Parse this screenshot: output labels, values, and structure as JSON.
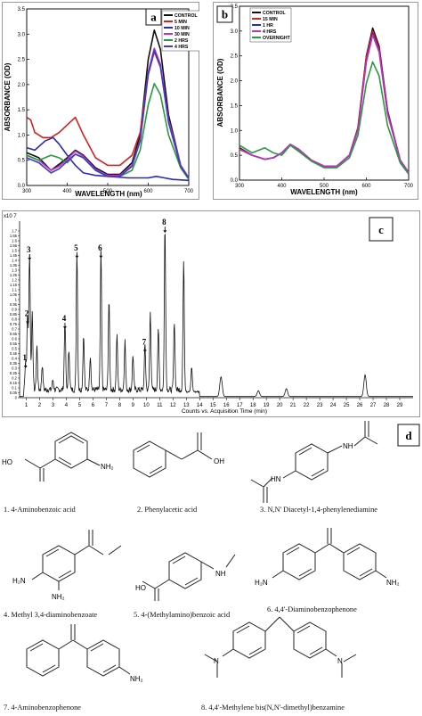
{
  "panel_a": {
    "tag": "a",
    "chart_data": {
      "type": "line",
      "xlabel": "WAVELENGTH (nm)",
      "ylabel": "ABSORBANCE (OD)",
      "xlim": [
        300,
        700
      ],
      "ylim": [
        0.0,
        3.5
      ],
      "xticks": [
        "300",
        "400",
        "500",
        "600",
        "700"
      ],
      "yticks": [
        "0.0",
        "0.5",
        "1.0",
        "1.5",
        "2.0",
        "2.5",
        "3.0",
        "3.5"
      ],
      "legend_position": "top-right",
      "series": [
        {
          "name": "CONTROL",
          "color": "#111111",
          "x": [
            300,
            330,
            360,
            380,
            400,
            420,
            440,
            470,
            500,
            530,
            560,
            580,
            600,
            615,
            630,
            650,
            680,
            700
          ],
          "y": [
            0.65,
            0.55,
            0.3,
            0.42,
            0.55,
            0.7,
            0.6,
            0.35,
            0.22,
            0.22,
            0.45,
            1.0,
            2.5,
            3.08,
            2.7,
            1.4,
            0.4,
            0.15
          ]
        },
        {
          "name": "5 MIN",
          "color": "#d62020",
          "x": [
            300,
            310,
            320,
            340,
            360,
            380,
            400,
            420,
            440,
            470,
            500,
            530,
            560,
            580,
            600,
            615,
            630,
            650,
            680,
            700
          ],
          "y": [
            1.35,
            1.3,
            1.05,
            0.95,
            0.95,
            1.05,
            1.2,
            1.35,
            1.0,
            0.55,
            0.4,
            0.4,
            0.6,
            1.05,
            2.2,
            2.65,
            2.35,
            1.3,
            0.4,
            0.15
          ]
        },
        {
          "name": "10 MIN",
          "color": "#2a2ab8",
          "x": [
            300,
            320,
            345,
            365,
            380,
            400,
            420,
            440,
            470,
            500,
            550,
            600,
            620,
            640,
            660,
            700
          ],
          "y": [
            0.75,
            0.7,
            0.88,
            0.95,
            0.82,
            0.6,
            0.4,
            0.25,
            0.2,
            0.18,
            0.15,
            0.15,
            0.18,
            0.15,
            0.12,
            0.1
          ]
        },
        {
          "name": "30 MIN",
          "color": "#c033c0",
          "x": [
            300,
            330,
            360,
            380,
            400,
            420,
            440,
            470,
            500,
            530,
            560,
            580,
            600,
            615,
            630,
            650,
            680,
            700
          ],
          "y": [
            0.6,
            0.5,
            0.3,
            0.38,
            0.52,
            0.68,
            0.58,
            0.32,
            0.2,
            0.2,
            0.4,
            0.9,
            2.25,
            2.72,
            2.4,
            1.3,
            0.4,
            0.15
          ]
        },
        {
          "name": "2 HRS",
          "color": "#2a9a3a",
          "x": [
            300,
            330,
            360,
            380,
            400,
            420,
            440,
            470,
            500,
            530,
            560,
            580,
            600,
            615,
            630,
            650,
            680,
            700
          ],
          "y": [
            0.6,
            0.5,
            0.6,
            0.55,
            0.45,
            0.62,
            0.55,
            0.3,
            0.18,
            0.18,
            0.3,
            0.7,
            1.6,
            2.02,
            1.8,
            1.0,
            0.35,
            0.12
          ]
        },
        {
          "name": "4 HRS",
          "color": "#3c3cc8",
          "x": [
            300,
            330,
            360,
            380,
            400,
            420,
            440,
            470,
            500,
            530,
            560,
            580,
            600,
            615,
            630,
            650,
            680,
            700
          ],
          "y": [
            0.55,
            0.45,
            0.25,
            0.33,
            0.48,
            0.62,
            0.55,
            0.3,
            0.18,
            0.18,
            0.38,
            0.88,
            2.2,
            2.68,
            2.36,
            1.25,
            0.38,
            0.14
          ]
        }
      ]
    }
  },
  "panel_b": {
    "tag": "b",
    "chart_data": {
      "type": "line",
      "xlabel": "WAVELENGTH (nm)",
      "ylabel": "ABSORBANCE (OD)",
      "xlim": [
        300,
        700
      ],
      "ylim": [
        0.0,
        3.5
      ],
      "xticks": [
        "300",
        "400",
        "500",
        "600",
        "700"
      ],
      "yticks": [
        "0.0",
        "0.5",
        "1.0",
        "1.5",
        "2.0",
        "2.5",
        "3.0",
        "3.5"
      ],
      "legend_position": "top-left",
      "series": [
        {
          "name": "CONTROL",
          "color": "#111111",
          "x": [
            300,
            330,
            360,
            380,
            400,
            420,
            440,
            470,
            500,
            530,
            560,
            580,
            600,
            615,
            630,
            650,
            680,
            700
          ],
          "y": [
            0.65,
            0.5,
            0.42,
            0.45,
            0.55,
            0.72,
            0.62,
            0.4,
            0.28,
            0.28,
            0.5,
            1.05,
            2.5,
            3.06,
            2.7,
            1.4,
            0.4,
            0.15
          ]
        },
        {
          "name": "15 MIN",
          "color": "#d62020",
          "x": [
            300,
            330,
            360,
            380,
            400,
            420,
            440,
            470,
            500,
            530,
            560,
            580,
            600,
            615,
            630,
            650,
            680,
            700
          ],
          "y": [
            0.63,
            0.5,
            0.42,
            0.45,
            0.55,
            0.72,
            0.62,
            0.4,
            0.28,
            0.28,
            0.5,
            1.05,
            2.48,
            3.0,
            2.65,
            1.38,
            0.4,
            0.15
          ]
        },
        {
          "name": "1 HR",
          "color": "#2a2ab8",
          "x": [
            300,
            330,
            360,
            380,
            400,
            420,
            440,
            470,
            500,
            530,
            560,
            580,
            600,
            615,
            630,
            650,
            680,
            700
          ],
          "y": [
            0.62,
            0.5,
            0.42,
            0.45,
            0.55,
            0.72,
            0.62,
            0.4,
            0.28,
            0.28,
            0.5,
            1.02,
            2.4,
            2.95,
            2.6,
            1.35,
            0.4,
            0.15
          ]
        },
        {
          "name": "4 HRS",
          "color": "#c033c0",
          "x": [
            300,
            330,
            360,
            380,
            400,
            420,
            440,
            470,
            500,
            530,
            560,
            580,
            600,
            615,
            630,
            650,
            680,
            700
          ],
          "y": [
            0.62,
            0.5,
            0.42,
            0.45,
            0.55,
            0.72,
            0.62,
            0.4,
            0.28,
            0.28,
            0.5,
            1.0,
            2.38,
            2.92,
            2.58,
            1.33,
            0.4,
            0.15
          ]
        },
        {
          "name": "OVERNIGHT",
          "color": "#2a9a3a",
          "x": [
            300,
            330,
            360,
            380,
            400,
            420,
            440,
            470,
            500,
            530,
            560,
            580,
            600,
            615,
            630,
            650,
            680,
            700
          ],
          "y": [
            0.7,
            0.55,
            0.65,
            0.55,
            0.5,
            0.7,
            0.58,
            0.38,
            0.25,
            0.25,
            0.45,
            0.9,
            1.95,
            2.38,
            2.1,
            1.1,
            0.35,
            0.12
          ]
        }
      ]
    }
  },
  "panel_c": {
    "tag": "c",
    "chart_data": {
      "type": "line",
      "xlabel": "Counts vs. Acquisition Time (min)",
      "y_multiplier": "x10 7",
      "xlim": [
        0.5,
        30
      ],
      "ylim": [
        0,
        1.8
      ],
      "xticks": [
        "1",
        "2",
        "3",
        "4",
        "5",
        "6",
        "7",
        "8",
        "9",
        "10",
        "11",
        "12",
        "13",
        "14",
        "15",
        "16",
        "17",
        "18",
        "19",
        "20",
        "21",
        "22",
        "23",
        "24",
        "25",
        "26",
        "27",
        "28",
        "29"
      ],
      "yticks": [
        "0",
        "0.05",
        "0.1",
        "0.15",
        "0.2",
        "0.25",
        "0.3",
        "0.35",
        "0.4",
        "0.45",
        "0.5",
        "0.55",
        "0.6",
        "0.65",
        "0.7",
        "0.75",
        "0.8",
        "0.85",
        "0.9",
        "0.95",
        "1",
        "1.05",
        "1.1",
        "1.15",
        "1.2",
        "1.25",
        "1.3",
        "1.35",
        "1.4",
        "1.45",
        "1.5",
        "1.55",
        "1.6",
        "1.65",
        "1.7"
      ],
      "peaks": [
        {
          "t": 0.95,
          "h": 0.3
        },
        {
          "t": 1.1,
          "h": 0.75
        },
        {
          "t": 1.25,
          "h": 1.4
        },
        {
          "t": 1.45,
          "h": 0.8
        },
        {
          "t": 1.8,
          "h": 0.45
        },
        {
          "t": 2.2,
          "h": 0.25
        },
        {
          "t": 3.0,
          "h": 0.1
        },
        {
          "t": 3.9,
          "h": 0.7
        },
        {
          "t": 4.2,
          "h": 0.4
        },
        {
          "t": 4.8,
          "h": 1.42
        },
        {
          "t": 5.3,
          "h": 0.55
        },
        {
          "t": 5.8,
          "h": 0.35
        },
        {
          "t": 6.6,
          "h": 1.42
        },
        {
          "t": 7.2,
          "h": 0.9
        },
        {
          "t": 7.8,
          "h": 0.55
        },
        {
          "t": 8.4,
          "h": 0.5
        },
        {
          "t": 9.0,
          "h": 0.35
        },
        {
          "t": 9.9,
          "h": 0.46
        },
        {
          "t": 10.3,
          "h": 0.8
        },
        {
          "t": 10.9,
          "h": 0.6
        },
        {
          "t": 11.4,
          "h": 1.68
        },
        {
          "t": 12.1,
          "h": 0.7
        },
        {
          "t": 12.8,
          "h": 1.3
        },
        {
          "t": 13.4,
          "h": 0.25
        },
        {
          "t": 15.6,
          "h": 0.2
        },
        {
          "t": 18.4,
          "h": 0.06
        },
        {
          "t": 20.5,
          "h": 0.08
        },
        {
          "t": 26.4,
          "h": 0.22
        }
      ],
      "annotations": [
        {
          "label": "1",
          "t": 0.95,
          "h": 0.3
        },
        {
          "label": "2",
          "t": 1.1,
          "h": 0.75
        },
        {
          "label": "3",
          "t": 1.25,
          "h": 1.4
        },
        {
          "label": "4",
          "t": 3.9,
          "h": 0.7
        },
        {
          "label": "5",
          "t": 4.8,
          "h": 1.42
        },
        {
          "label": "6",
          "t": 6.6,
          "h": 1.42
        },
        {
          "label": "7",
          "t": 9.9,
          "h": 0.46
        },
        {
          "label": "8",
          "t": 11.4,
          "h": 1.68
        }
      ]
    }
  },
  "panel_d": {
    "tag": "d",
    "compounds": [
      {
        "label": "1.  4-Aminobenzoic acid",
        "groups": [
          "HO",
          "NH₂"
        ]
      },
      {
        "label": "2.       Phenylacetic acid",
        "groups": [
          "OH"
        ]
      },
      {
        "label": "3.    N,N' Diacetyl-1,4-phenylenediamine",
        "groups": [
          "HN",
          "NH"
        ]
      },
      {
        "label": "4.  Methyl 3,4-diaminobenzoate",
        "groups": [
          "H₂N",
          "NH₂"
        ]
      },
      {
        "label": "5.  4-(Methylamino)benzoic acid",
        "groups": [
          "HO",
          "NH"
        ]
      },
      {
        "label": "6.      4,4'-Diaminobenzophenone",
        "groups": [
          "H₂N",
          "NH₂"
        ]
      },
      {
        "label": "7.    4-Aminobenzophenone",
        "groups": [
          "NH₂"
        ]
      },
      {
        "label": "8.  4,4'-Methylene bis(N,N'-dimethyl)benzamine",
        "groups": [
          "N",
          "N"
        ]
      }
    ]
  }
}
